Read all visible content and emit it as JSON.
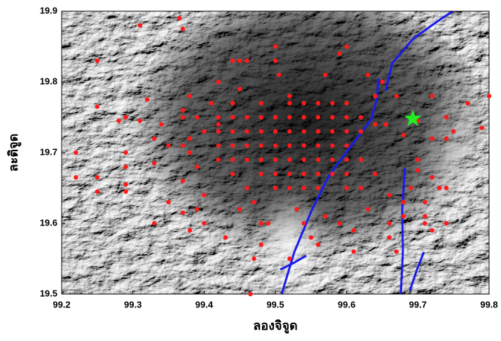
{
  "chart_data": {
    "type": "scatter",
    "xlabel": "ลองจิจูด",
    "ylabel": "ละติจูด",
    "xlim": [
      99.2,
      99.8
    ],
    "ylim": [
      19.5,
      19.9
    ],
    "xticks": [
      99.2,
      99.3,
      99.4,
      99.5,
      99.6,
      99.7,
      99.8
    ],
    "yticks": [
      19.5,
      19.6,
      19.7,
      19.8,
      19.9
    ],
    "series": [
      {
        "color": "#ff1a1a",
        "marker": "circle",
        "x": [
          99.25,
          99.31,
          99.365,
          99.37,
          99.22,
          99.22,
          99.25,
          99.25,
          99.25,
          99.28,
          99.29,
          99.29,
          99.29,
          99.29,
          99.29,
          99.31,
          99.32,
          99.33,
          99.33,
          99.34,
          99.35,
          99.35,
          99.33,
          99.37,
          99.37,
          99.37,
          99.37,
          99.37,
          99.38,
          99.38,
          99.38,
          99.38,
          99.39,
          99.39,
          99.39,
          99.4,
          99.4,
          99.42,
          99.41,
          99.42,
          99.43,
          99.44,
          99.45,
          99.45,
          99.46,
          99.47,
          99.465,
          99.48,
          99.5,
          99.5,
          99.505,
          99.52,
          99.52,
          99.57,
          99.59,
          99.6,
          99.63,
          99.65,
          99.67,
          99.64,
          99.64,
          99.655,
          99.68,
          99.7,
          99.72,
          99.74,
          99.75,
          99.72,
          99.74,
          99.77,
          99.8,
          99.79,
          99.7,
          99.7,
          99.72,
          99.69,
          99.73,
          99.74,
          99.71,
          99.71,
          99.71,
          99.72,
          99.74,
          99.68,
          99.68,
          99.66,
          99.66,
          99.67,
          99.66,
          99.63,
          99.61,
          99.61,
          99.57,
          99.59,
          99.55,
          99.54,
          99.56,
          99.53,
          99.49,
          99.48,
          99.47,
          99.45,
          99.44,
          99.48,
          99.52,
          99.54,
          99.56,
          99.58,
          99.6,
          99.42,
          99.44,
          99.46,
          99.48,
          99.5,
          99.52,
          99.54,
          99.56,
          99.58,
          99.6,
          99.62,
          99.4,
          99.42,
          99.44,
          99.46,
          99.48,
          99.5,
          99.52,
          99.54,
          99.56,
          99.58,
          99.6,
          99.62,
          99.42,
          99.44,
          99.46,
          99.48,
          99.5,
          99.52,
          99.54,
          99.56,
          99.58,
          99.6,
          99.42,
          99.44,
          99.46,
          99.48,
          99.5,
          99.52,
          99.54,
          99.56,
          99.58,
          99.6,
          99.62,
          99.44,
          99.48,
          99.5,
          99.52,
          99.54,
          99.56,
          99.58,
          99.6,
          99.64,
          99.46,
          99.5,
          99.52,
          99.54,
          99.56,
          99.6,
          99.62
        ],
        "values": [
          19.83,
          19.88,
          19.89,
          19.875,
          19.7,
          19.665,
          19.665,
          19.645,
          19.765,
          19.745,
          19.75,
          19.7,
          19.68,
          19.655,
          19.645,
          19.745,
          19.775,
          19.72,
          19.685,
          19.74,
          19.71,
          19.63,
          19.6,
          19.76,
          19.71,
          19.66,
          19.615,
          19.75,
          19.78,
          19.72,
          19.7,
          19.59,
          19.75,
          19.68,
          19.62,
          19.64,
          19.6,
          19.8,
          19.77,
          19.74,
          19.58,
          19.83,
          19.79,
          19.83,
          19.83,
          19.55,
          19.5,
          19.57,
          19.85,
          19.83,
          19.81,
          19.78,
          19.55,
          19.81,
          19.84,
          19.85,
          19.81,
          19.8,
          19.78,
          19.78,
          19.74,
          19.74,
          19.725,
          19.745,
          19.78,
          19.75,
          19.73,
          19.72,
          19.72,
          19.77,
          19.78,
          19.735,
          19.69,
          19.675,
          19.665,
          19.65,
          19.65,
          19.65,
          19.63,
          19.61,
          19.6,
          19.59,
          19.6,
          19.61,
          19.63,
          19.64,
          19.6,
          19.56,
          19.58,
          19.62,
          19.59,
          19.56,
          19.61,
          19.6,
          19.58,
          19.6,
          19.57,
          19.62,
          19.6,
          19.6,
          19.63,
          19.62,
          19.77,
          19.77,
          19.77,
          19.77,
          19.77,
          19.77,
          19.77,
          19.75,
          19.75,
          19.75,
          19.75,
          19.75,
          19.75,
          19.75,
          19.75,
          19.75,
          19.75,
          19.75,
          19.73,
          19.73,
          19.73,
          19.73,
          19.73,
          19.73,
          19.73,
          19.73,
          19.73,
          19.73,
          19.73,
          19.73,
          19.71,
          19.71,
          19.71,
          19.71,
          19.71,
          19.71,
          19.71,
          19.71,
          19.71,
          19.71,
          19.69,
          19.69,
          19.69,
          19.69,
          19.69,
          19.69,
          19.69,
          19.69,
          19.69,
          19.69,
          19.69,
          19.67,
          19.67,
          19.67,
          19.67,
          19.67,
          19.67,
          19.67,
          19.67,
          19.67,
          19.65,
          19.65,
          19.65,
          19.65,
          19.65,
          19.65,
          19.65
        ]
      },
      {
        "color": "#22ee22",
        "marker": "star",
        "x": [
          99.693
        ],
        "values": [
          19.748
        ]
      }
    ]
  }
}
